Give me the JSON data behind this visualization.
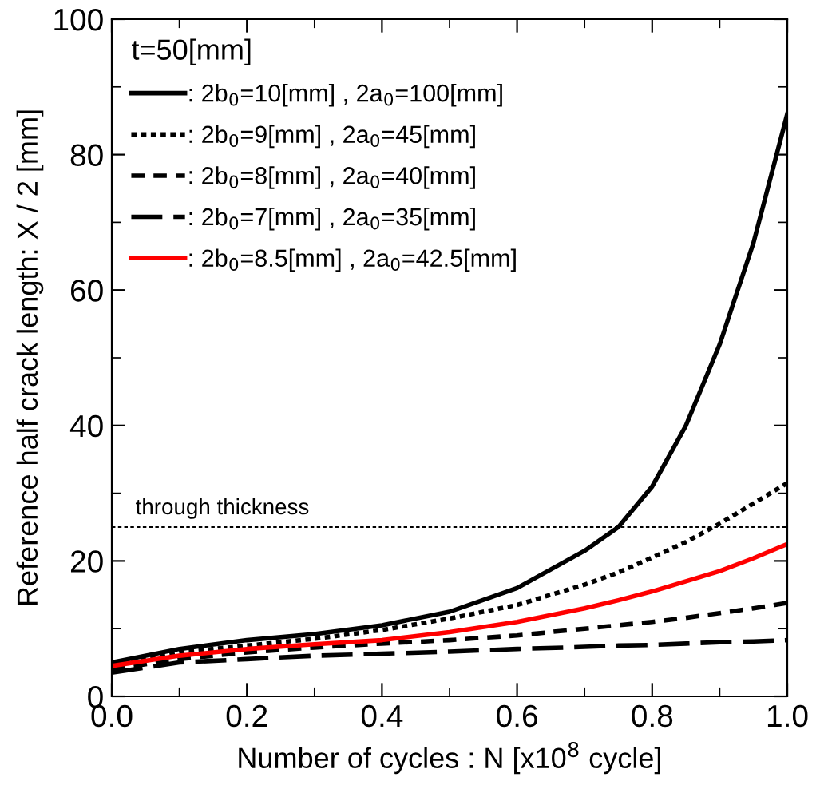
{
  "chart_data": {
    "type": "line",
    "xlabel": "Number of cycles : N [x10$^{8}$ cycle]",
    "ylabel": "Reference half crack length: X / 2 [mm]",
    "legend_title": "t=50[mm]",
    "legend": "top left",
    "grid": false,
    "x": [
      0,
      0.1,
      0.2,
      0.3,
      0.4,
      0.5,
      0.6,
      0.7,
      0.75,
      0.8,
      0.85,
      0.9,
      0.95,
      1.0
    ],
    "xlim": [
      0,
      1
    ],
    "xticks": [
      {
        "value": 0,
        "label": "0.0"
      },
      0.2,
      0.4,
      0.6,
      0.8,
      {
        "value": 1,
        "label": "1.0"
      }
    ],
    "ylim": [
      0,
      100
    ],
    "yticks": [
      0,
      20,
      40,
      60,
      80,
      100
    ],
    "series": [
      {
        "name": ": 2b$_{0}$=10[mm] , 2a$_{0}$=100[mm]",
        "color": "#000000",
        "line_style": "solid",
        "values": [
          5,
          7,
          8.3,
          9.2,
          10.5,
          12.5,
          16,
          21.5,
          25,
          31,
          40,
          52,
          67,
          86
        ]
      },
      {
        "name": ": 2b$_{0}$=9[mm] , 2a$_{0}$=45[mm]",
        "color": "#000000",
        "line_style": "dotted",
        "values": [
          4.8,
          6.5,
          7.5,
          8.5,
          9.8,
          11.5,
          13.5,
          16.5,
          18.3,
          20.5,
          22.8,
          25.5,
          28.5,
          31.5
        ]
      },
      {
        "name": ": 2b$_{0}$=8[mm] , 2a$_{0}$=40[mm]",
        "color": "#000000",
        "line_style": "dashed",
        "values": [
          4,
          5.5,
          6.5,
          7.2,
          7.8,
          8.3,
          9,
          10,
          10.5,
          11,
          11.6,
          12.3,
          13,
          13.8
        ]
      },
      {
        "name": ": 2b$_{0}$=7[mm] , 2a$_{0}$=35[mm]",
        "color": "#000000",
        "line_style": "dashed",
        "values": [
          3.5,
          5,
          5.5,
          6,
          6.3,
          6.6,
          7,
          7.3,
          7.5,
          7.6,
          7.8,
          8,
          8.1,
          8.3
        ]
      },
      {
        "name": ": 2b$_{0}$=8.5[mm] , 2a$_{0}$=42.5[mm]",
        "color": "#ff0000",
        "line_style": "solid",
        "values": [
          4.5,
          6,
          7,
          7.7,
          8.3,
          9.5,
          11,
          13,
          14.2,
          15.5,
          17,
          18.5,
          20.4,
          22.5
        ]
      }
    ],
    "ref_lines": [
      {
        "axis": "y",
        "value": 25,
        "label": "through thickness",
        "color": "#000000",
        "line_style": "dotted"
      }
    ]
  }
}
